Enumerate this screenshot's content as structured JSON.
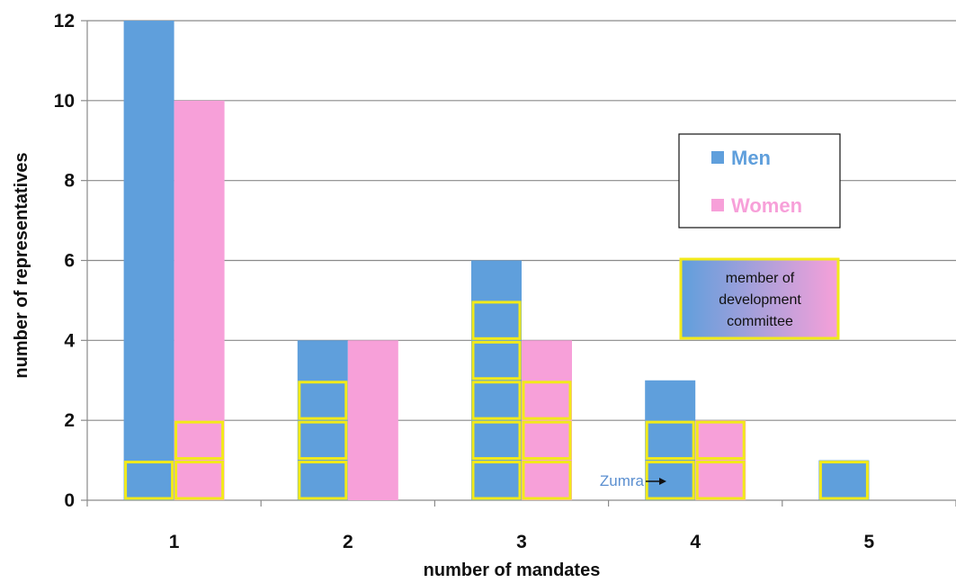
{
  "chart_data": {
    "type": "bar",
    "categories": [
      "1",
      "2",
      "3",
      "4",
      "5"
    ],
    "series": [
      {
        "name": "Men",
        "values": [
          12,
          4,
          6,
          3,
          1
        ],
        "committee_members": [
          1,
          3,
          5,
          2,
          1
        ],
        "color": "#5f9fdc"
      },
      {
        "name": "Women",
        "values": [
          10,
          4,
          4,
          2,
          0
        ],
        "committee_members": [
          2,
          0,
          3,
          2,
          0
        ],
        "color": "#f7a0d9"
      }
    ],
    "xlabel": "number of mandates",
    "ylabel": "number of representatives",
    "ylim": [
      0,
      12
    ],
    "yticks": [
      "0",
      "2",
      "4",
      "6",
      "8",
      "10",
      "12"
    ],
    "grid": true,
    "legend_position": "right",
    "committee_outline_color": "#f2ea1a",
    "committee_note": [
      "member of",
      "development",
      "committee"
    ],
    "annotation": {
      "text": "Zumra",
      "category": "4",
      "series": "Men",
      "color": "#5b8fd0"
    }
  }
}
